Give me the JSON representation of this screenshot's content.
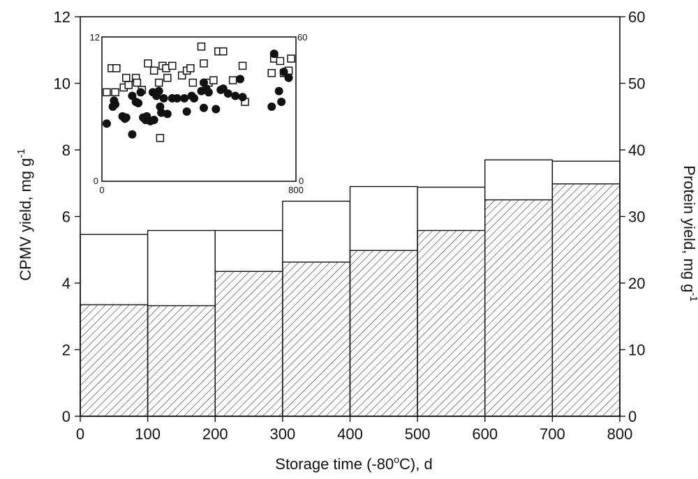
{
  "chart_data": [
    {
      "type": "bar",
      "title": "",
      "xlabel": "Storage time (-80°C), d",
      "ylabel": "CPMV yield, mg g-1",
      "y2label": "Protein yield, mg g-1",
      "xlim": [
        0,
        800
      ],
      "ylim": [
        0,
        12
      ],
      "y2lim": [
        0,
        60
      ],
      "x_ticks": [
        "0",
        "100",
        "200",
        "300",
        "400",
        "500",
        "600",
        "700",
        "800"
      ],
      "y_ticks": [
        "0",
        "2",
        "4",
        "6",
        "8",
        "10",
        "12"
      ],
      "y2_ticks": [
        "0",
        "10",
        "20",
        "30",
        "40",
        "50",
        "60"
      ],
      "bins": [
        [
          0,
          100
        ],
        [
          100,
          200
        ],
        [
          200,
          300
        ],
        [
          300,
          400
        ],
        [
          400,
          500
        ],
        [
          500,
          600
        ],
        [
          600,
          700
        ],
        [
          700,
          800
        ]
      ],
      "series": [
        {
          "axis": "left",
          "style": "hatched",
          "values": [
            3.35,
            3.32,
            4.35,
            4.63,
            4.98,
            5.58,
            6.5,
            6.98
          ]
        },
        {
          "axis": "right",
          "style": "open",
          "values": [
            27.3,
            27.9,
            27.9,
            32.3,
            34.5,
            34.4,
            38.5,
            38.3
          ]
        }
      ],
      "grid": false
    },
    {
      "type": "scatter",
      "title": "",
      "xlim": [
        0,
        800
      ],
      "ylim": [
        0,
        12
      ],
      "y2lim": [
        0,
        60
      ],
      "x_ticks": [
        "0",
        "800"
      ],
      "y_ticks": [
        "0",
        "12"
      ],
      "y2_ticks": [
        "0",
        "60"
      ],
      "series": [
        {
          "axis": "left",
          "marker": "filled-circle",
          "points": [
            [
              20,
              4.8
            ],
            [
              45,
              6.2
            ],
            [
              50,
              6.7
            ],
            [
              55,
              6.4
            ],
            [
              85,
              5.4
            ],
            [
              95,
              5.2
            ],
            [
              100,
              5.3
            ],
            [
              125,
              3.9
            ],
            [
              125,
              7.1
            ],
            [
              140,
              6.6
            ],
            [
              150,
              6.5
            ],
            [
              160,
              7.4
            ],
            [
              170,
              5.3
            ],
            [
              180,
              5.1
            ],
            [
              185,
              5.4
            ],
            [
              200,
              5.0
            ],
            [
              210,
              7.4
            ],
            [
              215,
              5.1
            ],
            [
              225,
              7.1
            ],
            [
              235,
              7.5
            ],
            [
              240,
              6.2
            ],
            [
              245,
              5.7
            ],
            [
              255,
              6.9
            ],
            [
              270,
              5.6
            ],
            [
              290,
              6.9
            ],
            [
              310,
              6.9
            ],
            [
              340,
              6.9
            ],
            [
              350,
              5.8
            ],
            [
              370,
              7.1
            ],
            [
              380,
              6.9
            ],
            [
              410,
              7.5
            ],
            [
              420,
              6.1
            ],
            [
              420,
              8.2
            ],
            [
              430,
              7.7
            ],
            [
              440,
              7.4
            ],
            [
              470,
              6.0
            ],
            [
              490,
              7.6
            ],
            [
              500,
              7.7
            ],
            [
              520,
              7.3
            ],
            [
              550,
              7.1
            ],
            [
              570,
              8.5
            ],
            [
              580,
              7.0
            ],
            [
              700,
              6.2
            ],
            [
              710,
              10.6
            ],
            [
              730,
              7.5
            ],
            [
              740,
              6.6
            ],
            [
              750,
              9.1
            ],
            [
              770,
              8.6
            ]
          ]
        },
        {
          "axis": "right",
          "marker": "open-square",
          "points": [
            [
              20,
              37
            ],
            [
              40,
              47
            ],
            [
              55,
              37
            ],
            [
              60,
              47
            ],
            [
              90,
              39
            ],
            [
              100,
              43
            ],
            [
              110,
              40
            ],
            [
              140,
              43
            ],
            [
              145,
              41
            ],
            [
              165,
              38
            ],
            [
              190,
              49
            ],
            [
              215,
              46
            ],
            [
              235,
              41
            ],
            [
              240,
              18
            ],
            [
              250,
              48
            ],
            [
              265,
              47
            ],
            [
              270,
              43
            ],
            [
              290,
              48
            ],
            [
              330,
              44
            ],
            [
              350,
              46
            ],
            [
              365,
              47
            ],
            [
              375,
              41
            ],
            [
              410,
              56
            ],
            [
              420,
              49
            ],
            [
              440,
              41
            ],
            [
              460,
              42
            ],
            [
              480,
              54
            ],
            [
              500,
              54
            ],
            [
              540,
              42
            ],
            [
              580,
              48
            ],
            [
              590,
              33
            ],
            [
              700,
              45
            ],
            [
              710,
              51
            ],
            [
              735,
              50
            ],
            [
              750,
              45
            ],
            [
              770,
              46
            ],
            [
              780,
              51
            ]
          ]
        }
      ],
      "grid": false
    }
  ]
}
